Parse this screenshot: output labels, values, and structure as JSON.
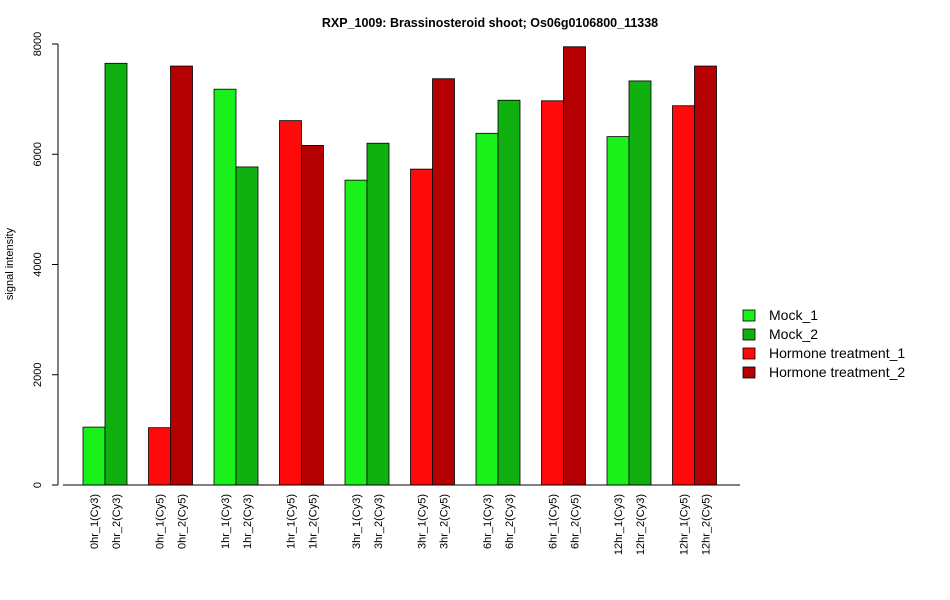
{
  "chart_data": {
    "type": "bar",
    "title": "RXP_1009: Brassinosteroid shoot; Os06g0106800_11338",
    "xlabel": "",
    "ylabel": "signal intensity",
    "ylim": [
      0,
      8000
    ],
    "yticks": [
      0,
      2000,
      4000,
      6000,
      8000
    ],
    "grid": false,
    "legend_position": "right",
    "legend": [
      {
        "name": "Mock_1",
        "color": "#1AF01A"
      },
      {
        "name": "Mock_2",
        "color": "#10B010"
      },
      {
        "name": "Hormone treatment_1",
        "color": "#FF0A0A"
      },
      {
        "name": "Hormone treatment_2",
        "color": "#B40000"
      }
    ],
    "bars": [
      {
        "label": "0hr_1(Cy3)",
        "value": 1050,
        "color": "#1AF01A"
      },
      {
        "label": "0hr_2(Cy3)",
        "value": 7650,
        "color": "#10B010"
      },
      {
        "label": "0hr_1(Cy5)",
        "value": 1040,
        "color": "#FF0A0A"
      },
      {
        "label": "0hr_2(Cy5)",
        "value": 7600,
        "color": "#B40000"
      },
      {
        "label": "1hr_1(Cy3)",
        "value": 7180,
        "color": "#1AF01A"
      },
      {
        "label": "1hr_2(Cy3)",
        "value": 5770,
        "color": "#10B010"
      },
      {
        "label": "1hr_1(Cy5)",
        "value": 6610,
        "color": "#FF0A0A"
      },
      {
        "label": "1hr_2(Cy5)",
        "value": 6160,
        "color": "#B40000"
      },
      {
        "label": "3hr_1(Cy3)",
        "value": 5530,
        "color": "#1AF01A"
      },
      {
        "label": "3hr_2(Cy3)",
        "value": 6200,
        "color": "#10B010"
      },
      {
        "label": "3hr_1(Cy5)",
        "value": 5730,
        "color": "#FF0A0A"
      },
      {
        "label": "3hr_2(Cy5)",
        "value": 7370,
        "color": "#B40000"
      },
      {
        "label": "6hr_1(Cy3)",
        "value": 6380,
        "color": "#1AF01A"
      },
      {
        "label": "6hr_2(Cy3)",
        "value": 6980,
        "color": "#10B010"
      },
      {
        "label": "6hr_1(Cy5)",
        "value": 6970,
        "color": "#FF0A0A"
      },
      {
        "label": "6hr_2(Cy5)",
        "value": 7950,
        "color": "#B40000"
      },
      {
        "label": "12hr_1(Cy3)",
        "value": 6320,
        "color": "#1AF01A"
      },
      {
        "label": "12hr_2(Cy3)",
        "value": 7330,
        "color": "#10B010"
      },
      {
        "label": "12hr_1(Cy5)",
        "value": 6880,
        "color": "#FF0A0A"
      },
      {
        "label": "12hr_2(Cy5)",
        "value": 7600,
        "color": "#B40000"
      }
    ]
  }
}
